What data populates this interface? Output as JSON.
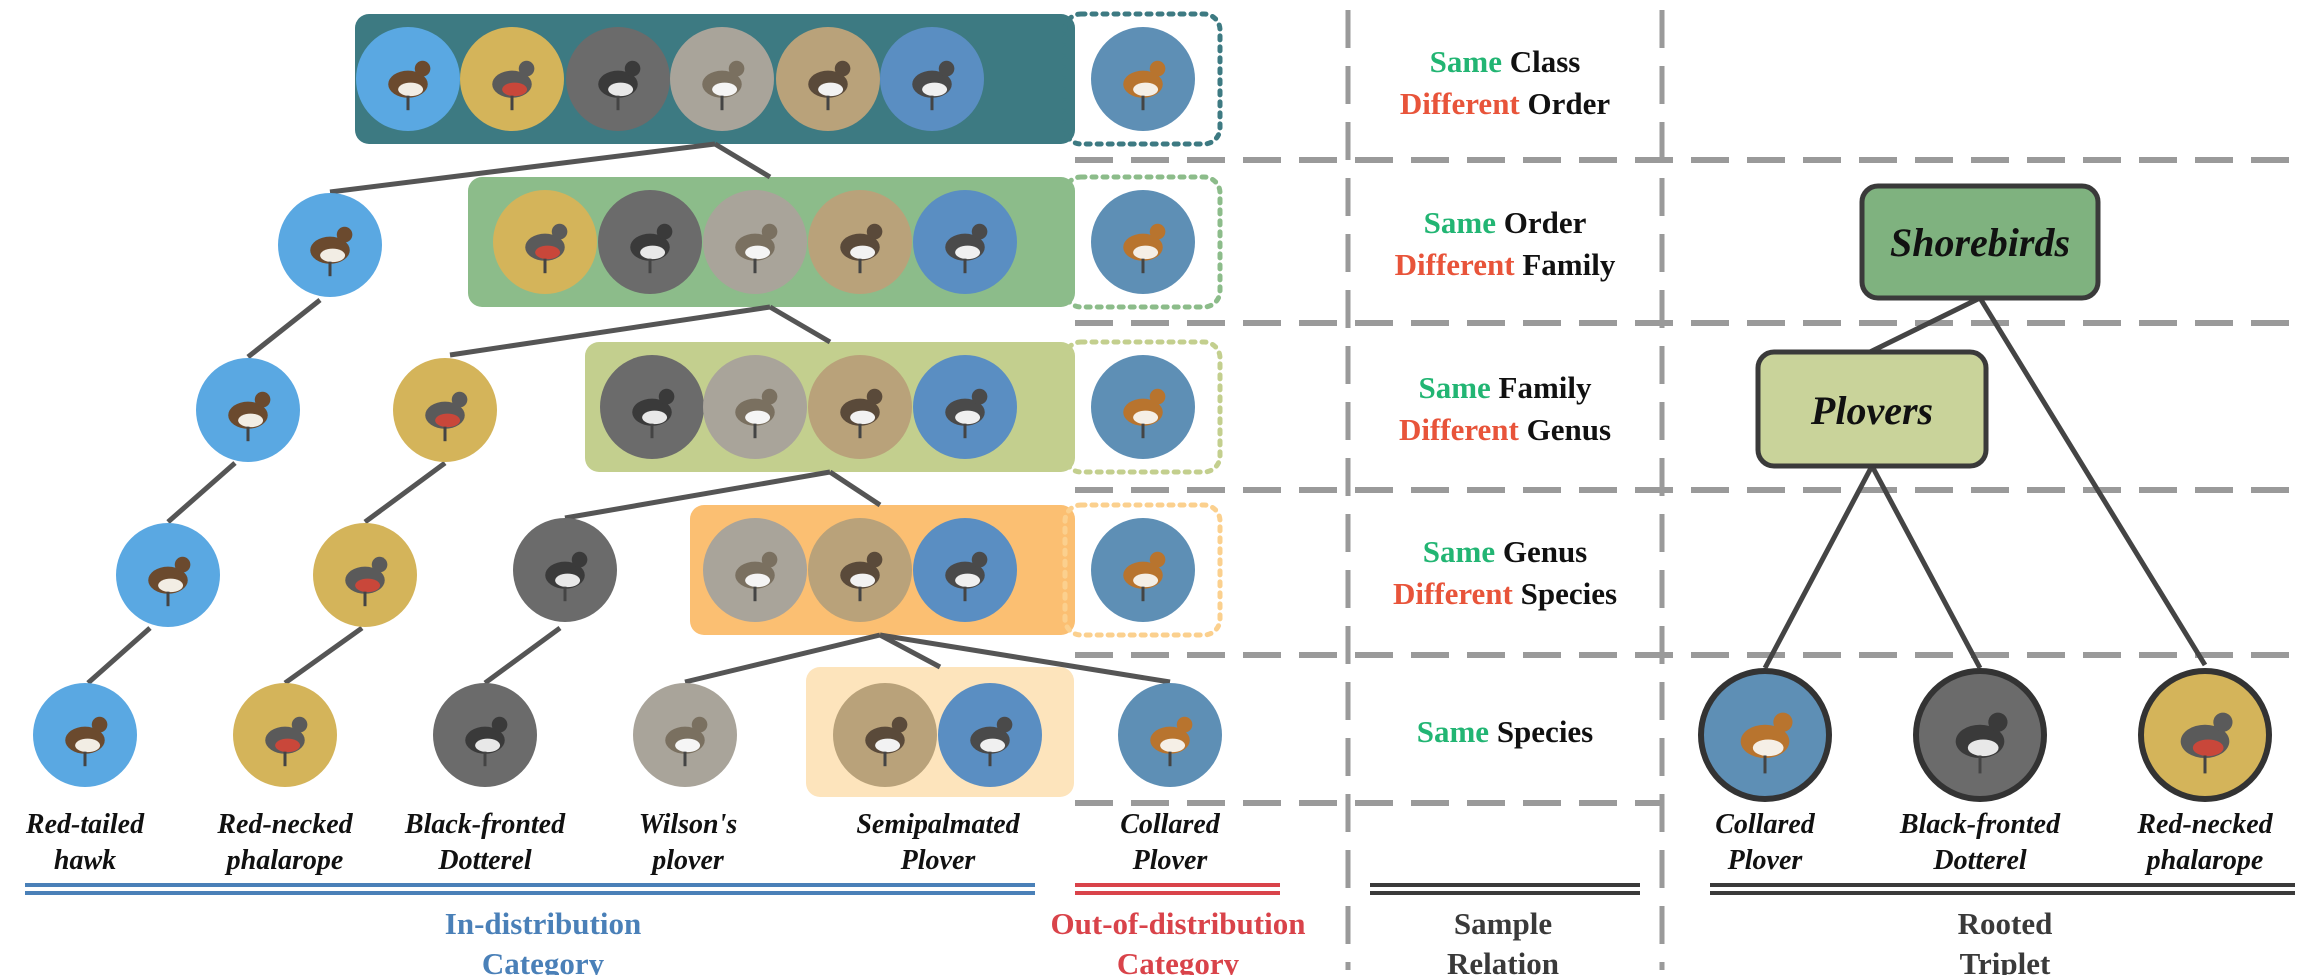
{
  "rows": [
    {
      "same_word": "Same",
      "same_rank": "Class",
      "diff_word": "Different",
      "diff_rank": "Order"
    },
    {
      "same_word": "Same",
      "same_rank": "Order",
      "diff_word": "Different",
      "diff_rank": "Family"
    },
    {
      "same_word": "Same",
      "same_rank": "Family",
      "diff_word": "Different",
      "diff_rank": "Genus"
    },
    {
      "same_word": "Same",
      "same_rank": "Genus",
      "diff_word": "Different",
      "diff_rank": "Species"
    },
    {
      "same_word": "Same",
      "same_rank": "Species"
    }
  ],
  "species": [
    {
      "line1": "Red-tailed",
      "line2": "hawk"
    },
    {
      "line1": "Red-necked",
      "line2": "phalarope"
    },
    {
      "line1": "Black-fronted",
      "line2": "Dotterel"
    },
    {
      "line1": "Wilson's",
      "line2": "plover"
    },
    {
      "line1": "Semipalmated",
      "line2": "Plover"
    },
    {
      "line1": "Collared",
      "line2": "Plover"
    }
  ],
  "groups": {
    "in_distribution": {
      "line1": "In-distribution",
      "line2": "Category"
    },
    "out_of_distribution": {
      "line1": "Out-of-distribution",
      "line2": "Category"
    },
    "sample_relation": {
      "line1": "Sample",
      "line2": "Relation"
    },
    "rooted_triplet": {
      "line1": "Rooted",
      "line2": "Triplet"
    }
  },
  "triplet": {
    "node_top": "Shorebirds",
    "node_mid": "Plovers",
    "leaves": [
      {
        "line1": "Collared",
        "line2": "Plover"
      },
      {
        "line1": "Black-fronted",
        "line2": "Dotterel"
      },
      {
        "line1": "Red-necked",
        "line2": "phalarope"
      }
    ]
  },
  "colors": {
    "same": "#22b573",
    "different": "#e8543a",
    "in_dist": "#4a80b8",
    "out_dist": "#d9434a",
    "dark_text": "#3a3a3a",
    "level1": "#3d7a82",
    "level2": "#8cbc8a",
    "level3": "#c3cf8e",
    "level4": "#fbbf72",
    "level5": "#fde4bc",
    "hawk": "#5aa8e2",
    "phalarope": "#d4b45a",
    "dotterel": "#6b6b6b",
    "wilson": "#a9a49a",
    "semipalmated": "#8c7a5a",
    "semipalmated2": "#5a8ec2",
    "collared": "#5e8fb5",
    "node_top": "#7fb27f",
    "node_mid": "#c9d39a"
  },
  "icons": {
    "bird_photo": "bird-photo-icon"
  }
}
